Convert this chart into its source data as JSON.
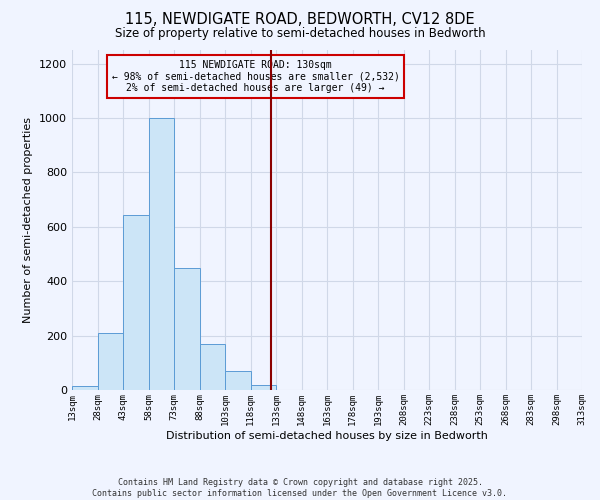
{
  "title_line1": "115, NEWDIGATE ROAD, BEDWORTH, CV12 8DE",
  "title_line2": "Size of property relative to semi-detached houses in Bedworth",
  "xlabel": "Distribution of semi-detached houses by size in Bedworth",
  "ylabel": "Number of semi-detached properties",
  "bin_edges": [
    13,
    28,
    43,
    58,
    73,
    88,
    103,
    118,
    133,
    148,
    163,
    178,
    193,
    208,
    223,
    238,
    253,
    268,
    283,
    298,
    313
  ],
  "bin_counts": [
    15,
    210,
    645,
    1000,
    450,
    170,
    70,
    20,
    0,
    0,
    0,
    0,
    0,
    0,
    0,
    0,
    0,
    0,
    0,
    0
  ],
  "property_size": 130,
  "annotation_title": "115 NEWDIGATE ROAD: 130sqm",
  "annotation_line2": "← 98% of semi-detached houses are smaller (2,532)",
  "annotation_line3": "2% of semi-detached houses are larger (49) →",
  "bar_facecolor": "#cce5f7",
  "bar_edgecolor": "#5b9bd5",
  "vline_color": "#8b0000",
  "grid_color": "#d0d8e8",
  "background_color": "#f0f4ff",
  "footer_line1": "Contains HM Land Registry data © Crown copyright and database right 2025.",
  "footer_line2": "Contains public sector information licensed under the Open Government Licence v3.0.",
  "ylim": [
    0,
    1250
  ],
  "yticks": [
    0,
    200,
    400,
    600,
    800,
    1000,
    1200
  ]
}
